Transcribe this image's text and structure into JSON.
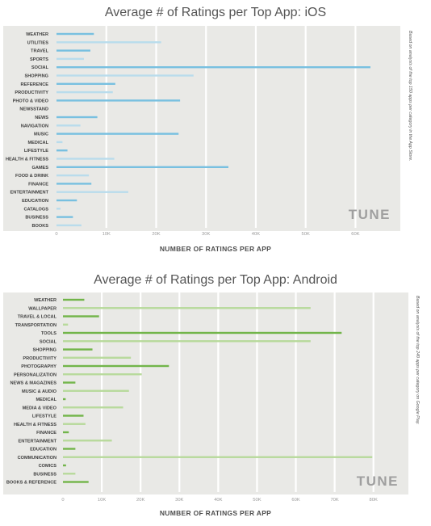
{
  "chart_data": [
    {
      "type": "bar",
      "orientation": "horizontal",
      "title": "Average # of Ratings per Top App: iOS",
      "xlabel": "NUMBER OF RATINGS PER APP",
      "ylabel": "",
      "note": "Based on analysis of the top 150 apps per category in the App Store.",
      "logo": "TUNE",
      "xlim": [
        0,
        69000
      ],
      "ticks": [
        0,
        10000,
        20000,
        30000,
        40000,
        50000,
        60000
      ],
      "tick_labels": [
        "0",
        "10K",
        "20K",
        "30K",
        "40K",
        "50K",
        "60K"
      ],
      "grid": true,
      "colors": {
        "dark": "#78c0e0",
        "light": "#b9dcec"
      },
      "categories": [
        "WEATHER",
        "UTILITIES",
        "TRAVEL",
        "SPORTS",
        "SOCIAL",
        "SHOPPING",
        "REFERENCE",
        "PRODUCTIVITY",
        "PHOTO & VIDEO",
        "NEWSSTAND",
        "NEWS",
        "NAVIGATION",
        "MUSIC",
        "MEDICAL",
        "LIFESTYLE",
        "HEALTH & FITNESS",
        "GAMES",
        "FOOD & DRINK",
        "FINANCE",
        "ENTERTAINMENT",
        "EDUCATION",
        "CATALOGS",
        "BUSINESS",
        "BOOKS"
      ],
      "values": [
        7500,
        21000,
        6800,
        5500,
        63000,
        27500,
        11800,
        11300,
        24800,
        0,
        8200,
        4800,
        24500,
        1200,
        2200,
        11600,
        34500,
        6500,
        7000,
        14400,
        4100,
        800,
        3300,
        5000
      ]
    },
    {
      "type": "bar",
      "orientation": "horizontal",
      "title": "Average # of Ratings per Top App: Android",
      "xlabel": "NUMBER OF RATINGS PER APP",
      "ylabel": "",
      "note": "Based on analysis of the top 240 apps per category on Google Play.",
      "logo": "TUNE",
      "xlim": [
        0,
        89000
      ],
      "ticks": [
        0,
        10000,
        20000,
        30000,
        40000,
        50000,
        60000,
        70000,
        80000
      ],
      "tick_labels": [
        "0",
        "10K",
        "20K",
        "30K",
        "40K",
        "50K",
        "60K",
        "70K",
        "80K"
      ],
      "grid": true,
      "colors": {
        "dark": "#72b54a",
        "light": "#b8da9c"
      },
      "categories": [
        "WEATHER",
        "WALLPAPER",
        "TRAVEL & LOCAL",
        "TRANSPORTATION",
        "TOOLS",
        "SOCIAL",
        "SHOPPING",
        "PRODUCTIVITY",
        "PHOTOGRAPHY",
        "PERSONALIZATION",
        "NEWS & MAGAZINES",
        "MUSIC & AUDIO",
        "MEDICAL",
        "MEDIA & VIDEO",
        "LIFESTYLE",
        "HEALTH & FITNESS",
        "FINANCE",
        "ENTERTAINMENT",
        "EDUCATION",
        "COMMUNICATION",
        "COMICS",
        "BUSINESS",
        "BOOKS & REFERENCE"
      ],
      "values": [
        5500,
        63800,
        9300,
        1300,
        71800,
        63800,
        7600,
        17500,
        27300,
        20300,
        3200,
        17000,
        700,
        15500,
        5300,
        5800,
        1500,
        12600,
        3200,
        79700,
        800,
        3200,
        6600
      ]
    }
  ]
}
